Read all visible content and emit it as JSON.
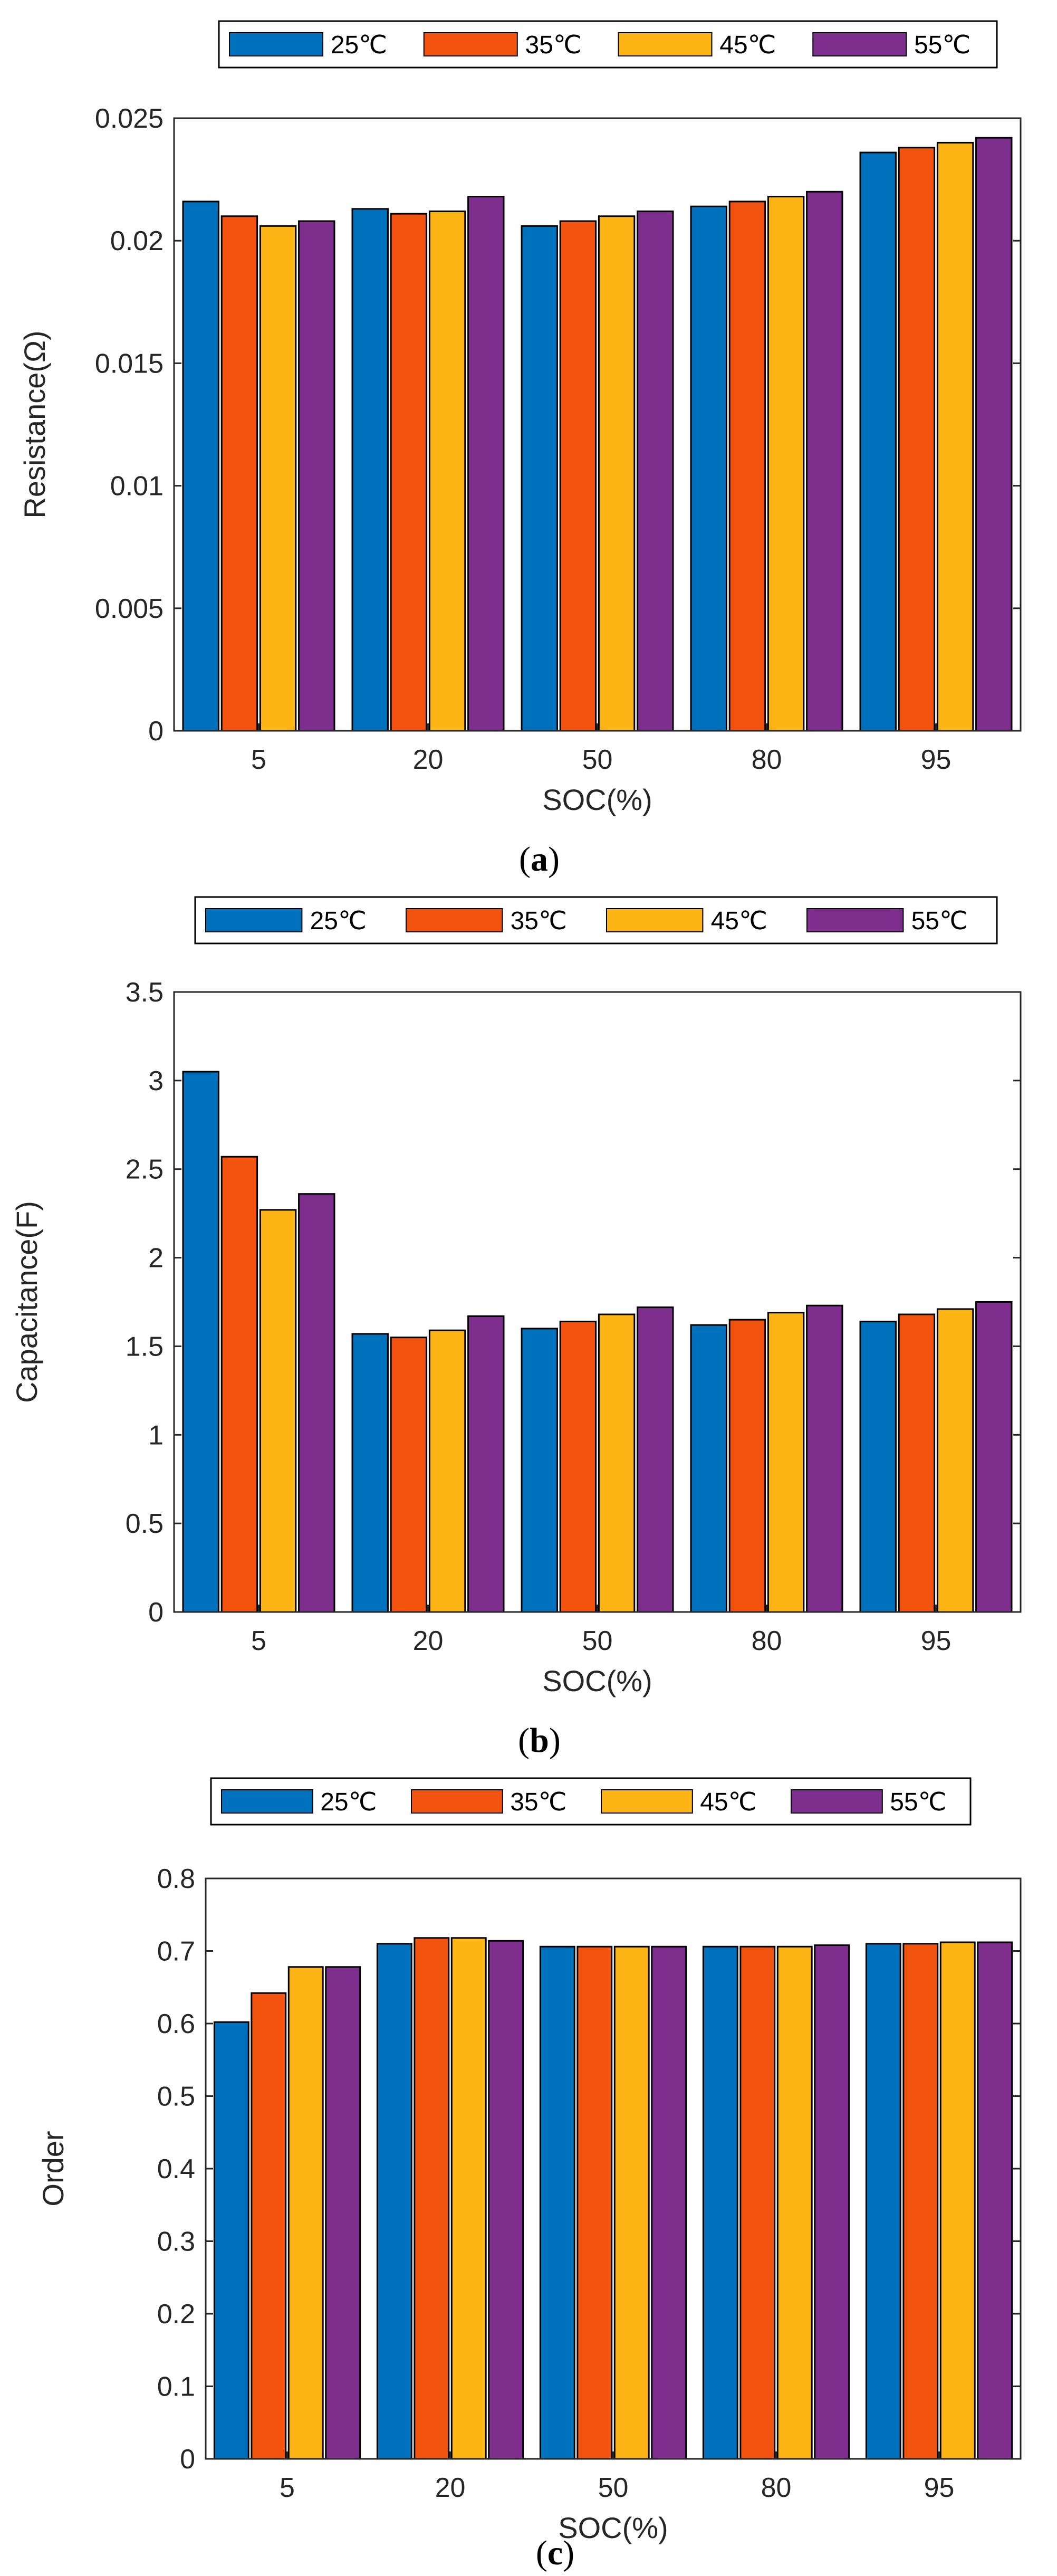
{
  "colors": {
    "25": "#0072BD",
    "35": "#F25410",
    "45": "#FDB515",
    "55": "#7E2F8E"
  },
  "chart_data": [
    {
      "type": "bar",
      "caption": [
        "(",
        "a",
        ")"
      ],
      "categories": [
        "5",
        "20",
        "50",
        "80",
        "95"
      ],
      "xlabel": "SOC(%)",
      "ylabel": "Resistance(Ω)",
      "ylim": [
        0,
        0.025
      ],
      "yticks": [
        "0",
        "0.005",
        "0.01",
        "0.015",
        "0.02",
        "0.025"
      ],
      "legend": "top",
      "series": [
        {
          "name": "25℃",
          "values": [
            0.0216,
            0.0213,
            0.0206,
            0.0214,
            0.0236
          ]
        },
        {
          "name": "35℃",
          "values": [
            0.021,
            0.0211,
            0.0208,
            0.0216,
            0.0238
          ]
        },
        {
          "name": "45℃",
          "values": [
            0.0206,
            0.0212,
            0.021,
            0.0218,
            0.024
          ]
        },
        {
          "name": "55℃",
          "values": [
            0.0208,
            0.0218,
            0.0212,
            0.022,
            0.0242
          ]
        }
      ]
    },
    {
      "type": "bar",
      "caption": [
        "(",
        "b",
        ")"
      ],
      "categories": [
        "5",
        "20",
        "50",
        "80",
        "95"
      ],
      "xlabel": "SOC(%)",
      "ylabel": "Capacitance(F)",
      "ylim": [
        0,
        3.5
      ],
      "yticks": [
        "0",
        "0.5",
        "1",
        "1.5",
        "2",
        "2.5",
        "3",
        "3.5"
      ],
      "legend": "top",
      "series": [
        {
          "name": "25℃",
          "values": [
            3.05,
            1.57,
            1.6,
            1.62,
            1.64
          ]
        },
        {
          "name": "35℃",
          "values": [
            2.57,
            1.55,
            1.64,
            1.65,
            1.68
          ]
        },
        {
          "name": "45℃",
          "values": [
            2.27,
            1.59,
            1.68,
            1.69,
            1.71
          ]
        },
        {
          "name": "55℃",
          "values": [
            2.36,
            1.67,
            1.72,
            1.73,
            1.75
          ]
        }
      ]
    },
    {
      "type": "bar",
      "caption": [
        "(",
        "c",
        ")"
      ],
      "categories": [
        "5",
        "20",
        "50",
        "80",
        "95"
      ],
      "xlabel": "SOC(%)",
      "ylabel": "Order",
      "ylim": [
        0,
        0.8
      ],
      "yticks": [
        "0",
        "0.1",
        "0.2",
        "0.3",
        "0.4",
        "0.5",
        "0.6",
        "0.7",
        "0.8"
      ],
      "legend": "top",
      "series": [
        {
          "name": "25℃",
          "values": [
            0.602,
            0.71,
            0.706,
            0.706,
            0.71
          ]
        },
        {
          "name": "35℃",
          "values": [
            0.642,
            0.718,
            0.706,
            0.706,
            0.71
          ]
        },
        {
          "name": "45℃",
          "values": [
            0.678,
            0.718,
            0.706,
            0.706,
            0.712
          ]
        },
        {
          "name": "55℃",
          "values": [
            0.678,
            0.714,
            0.706,
            0.708,
            0.712
          ]
        }
      ]
    }
  ]
}
